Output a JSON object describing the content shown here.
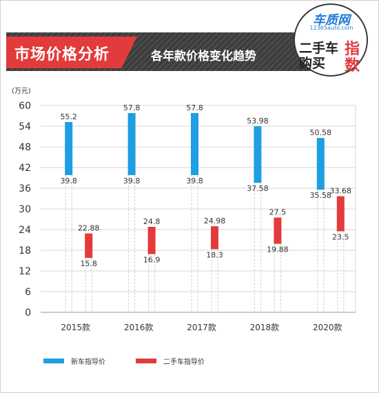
{
  "header": {
    "title": "市场价格分析",
    "subtitle": "各年款价格变化趋势"
  },
  "logo": {
    "brand": "车质网",
    "url": "12365auto.com",
    "line1": "二手车",
    "line2": "购买",
    "accent1": "指",
    "accent2": "数"
  },
  "chart_data": {
    "type": "bar",
    "unit": "(万元)",
    "categories": [
      "2015款",
      "2016款",
      "2017款",
      "2018款",
      "2020款"
    ],
    "ylim": [
      0,
      60
    ],
    "yticks": [
      0,
      6,
      12,
      18,
      24,
      30,
      36,
      42,
      48,
      54,
      60
    ],
    "grid": true,
    "legend_position": "bottom-left",
    "series": [
      {
        "name": "新车指导价",
        "color": "#1e9ee3",
        "low": [
          39.8,
          39.8,
          39.8,
          37.58,
          35.58
        ],
        "high": [
          55.2,
          57.8,
          57.8,
          53.98,
          50.58
        ],
        "low_labels": [
          "39.8",
          "39.8",
          "39.8",
          "37.58",
          "35.58"
        ],
        "high_labels": [
          "55.2",
          "57.8",
          "57.8",
          "53.98",
          "50.58"
        ]
      },
      {
        "name": "二手车指导价",
        "color": "#e33b3b",
        "low": [
          15.8,
          16.9,
          18.3,
          19.88,
          23.5
        ],
        "high": [
          22.88,
          24.8,
          24.98,
          27.5,
          33.68
        ],
        "low_labels": [
          "15.8",
          "16.9",
          "18.3",
          "19.88",
          "23.5"
        ],
        "high_labels": [
          "22.88",
          "24.8",
          "24.98",
          "27.5",
          "33.68"
        ]
      }
    ]
  }
}
